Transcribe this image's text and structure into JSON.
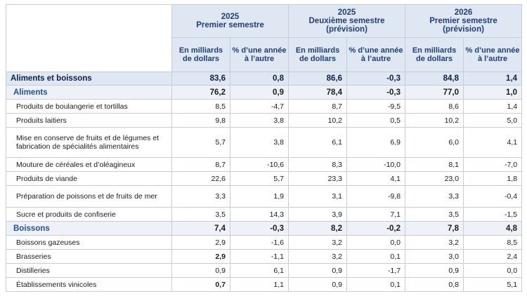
{
  "header": {
    "periods": [
      {
        "year": "2025",
        "label": "Premier semestre",
        "note": ""
      },
      {
        "year": "2025",
        "label": "Deuxième semestre",
        "note": "(prévision)"
      },
      {
        "year": "2026",
        "label": "Premier semestre",
        "note": "(prévision)"
      }
    ],
    "col_value": "En milliards de dollars",
    "col_pct": "% d’une année à l’autre"
  },
  "rows": [
    {
      "label": "Aliments et boissons",
      "level": "group",
      "v": [
        "83,6",
        "0,8",
        "86,6",
        "-0,3",
        "84,8",
        "1,4"
      ]
    },
    {
      "label": "Aliments",
      "level": "subgroup",
      "v": [
        "76,2",
        "0,9",
        "78,4",
        "-0,3",
        "77,0",
        "1,0"
      ]
    },
    {
      "label": "Produits de boulangerie et tortillas",
      "level": "item",
      "v": [
        "8,5",
        "-4,7",
        "8,7",
        "-9,5",
        "8,6",
        "1,4"
      ]
    },
    {
      "label": "Produits laitiers",
      "level": "item",
      "v": [
        "9,8",
        "3,8",
        "10,2",
        "0,5",
        "10,2",
        "5,0"
      ]
    },
    {
      "label": "Mise en conserve de fruits et de légumes et fabrication de spécialités alimentaires",
      "level": "item",
      "lines": 3,
      "v": [
        "5,7",
        "3,8",
        "6,1",
        "6,9",
        "6,0",
        "4,1"
      ]
    },
    {
      "label": "Mouture de céréales et d’oléagineux",
      "level": "item",
      "v": [
        "8,7",
        "-10,6",
        "8,3",
        "-10,0",
        "8,1",
        "-7,0"
      ]
    },
    {
      "label": "Produits de viande",
      "level": "item",
      "v": [
        "22,6",
        "5,7",
        "23,3",
        "4,1",
        "23,0",
        "1,8"
      ]
    },
    {
      "label": "Préparation de poissons et de fruits de mer",
      "level": "item",
      "lines": 2,
      "v": [
        "3,3",
        "1,9",
        "3,1",
        "-9,8",
        "3,3",
        "-0,4"
      ]
    },
    {
      "label": "Sucre et produits de confiserie",
      "level": "item",
      "v": [
        "3,5",
        "14,3",
        "3,9",
        "7,1",
        "3,5",
        "-1,5"
      ]
    },
    {
      "label": "Boissons",
      "level": "subgroup",
      "v": [
        "7,4",
        "-0,3",
        "8,2",
        "-0,2",
        "7,8",
        "4,8"
      ]
    },
    {
      "label": "Boissons gazeuses",
      "level": "item",
      "v": [
        "2,9",
        "-1,6",
        "3,2",
        "0,0",
        "3,2",
        "8,5"
      ]
    },
    {
      "label": "Brasseries",
      "level": "item",
      "bold_first": true,
      "v": [
        "2,9",
        "-1,1",
        "3,2",
        "0,1",
        "3,0",
        "2,4"
      ]
    },
    {
      "label": "Distilleries",
      "level": "item",
      "v": [
        "0,9",
        "6,1",
        "0,9",
        "-1,7",
        "0,9",
        "0,0"
      ]
    },
    {
      "label": "Établissements vinicoles",
      "level": "item",
      "bold_first": true,
      "v": [
        "0,7",
        "1,1",
        "0,9",
        "0,1",
        "0,8",
        "5,1"
      ]
    }
  ]
}
